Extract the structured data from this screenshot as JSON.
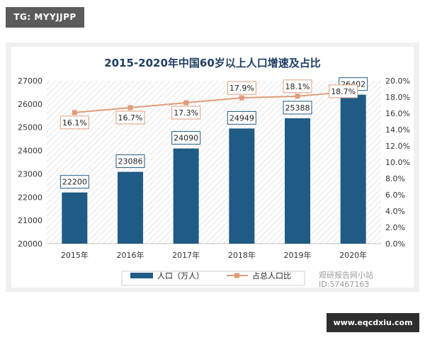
{
  "overlay": {
    "tag": "TG: MYYJJPP",
    "watermark_line1": "观研报告网小站",
    "watermark_line2": "ID:57467163",
    "site": "www.eqcdxiu.com"
  },
  "chart_data": {
    "type": "bar",
    "title": "2015-2020年中国60岁以上人口增速及占比",
    "categories": [
      "2015年",
      "2016年",
      "2017年",
      "2018年",
      "2019年",
      "2020年"
    ],
    "series": [
      {
        "name": "人口（万人）",
        "type": "bar",
        "axis": "left",
        "color": "#1f5b85",
        "values": [
          22200,
          23086,
          24090,
          24949,
          25388,
          26402
        ],
        "labels": [
          "22200",
          "23086",
          "24090",
          "24949",
          "25388",
          "26402"
        ]
      },
      {
        "name": "占总人口比",
        "type": "line",
        "axis": "right",
        "color": "#e09c7a",
        "values": [
          16.1,
          16.7,
          17.3,
          17.9,
          18.1,
          18.7
        ],
        "labels": [
          "16.1%",
          "16.7%",
          "17.3%",
          "17.9%",
          "18.1%",
          "18.7%"
        ]
      }
    ],
    "y_left": {
      "range": [
        20000,
        27000
      ],
      "ticks": [
        "20000",
        "21000",
        "22000",
        "23000",
        "24000",
        "25000",
        "26000",
        "27000"
      ]
    },
    "y_right": {
      "range": [
        0,
        20
      ],
      "ticks": [
        "0.0%",
        "2.0%",
        "4.0%",
        "6.0%",
        "8.0%",
        "10.0%",
        "12.0%",
        "14.0%",
        "16.0%",
        "18.0%",
        "20.0%"
      ]
    },
    "grid": false,
    "legend_position": "bottom"
  }
}
